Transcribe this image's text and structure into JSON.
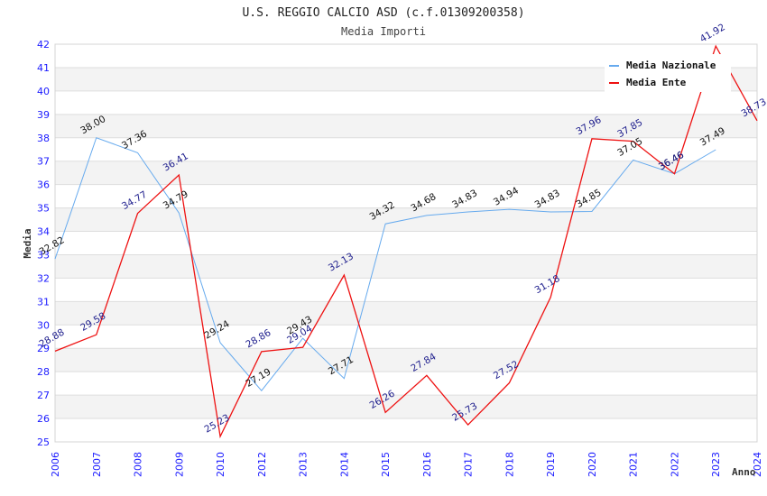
{
  "chart_data": {
    "type": "line",
    "title": "U.S. REGGIO CALCIO ASD (c.f.01309200358)",
    "subtitle": "Media Importi",
    "xlabel": "Anno",
    "ylabel": "Media",
    "ylim": [
      25,
      42
    ],
    "yticks": [
      "25",
      "26",
      "27",
      "28",
      "29",
      "30",
      "31",
      "32",
      "33",
      "34",
      "35",
      "36",
      "37",
      "38",
      "39",
      "40",
      "41",
      "42"
    ],
    "grid": true,
    "legend_position": "top-right",
    "categories": [
      "2006",
      "2007",
      "2008",
      "2009",
      "2010",
      "2012",
      "2013",
      "2014",
      "2015",
      "2016",
      "2017",
      "2018",
      "2019",
      "2020",
      "2021",
      "2022",
      "2023",
      "2024"
    ],
    "series": [
      {
        "name": "Media Nazionale",
        "color": "#66aaee",
        "values": [
          32.82,
          38.0,
          37.36,
          34.79,
          29.24,
          27.19,
          29.43,
          27.71,
          34.32,
          34.68,
          34.83,
          34.94,
          34.83,
          34.85,
          37.05,
          36.46,
          37.49,
          null
        ],
        "labels": [
          "32.82",
          "38.00",
          "37.36",
          "34.79",
          "29.24",
          "27.19",
          "29.43",
          "27.71",
          "34.32",
          "34.68",
          "34.83",
          "34.94",
          "34.83",
          "34.85",
          "37.05",
          "36.46",
          "37.49",
          null
        ]
      },
      {
        "name": "Media Ente",
        "color": "#ee1111",
        "values": [
          28.88,
          29.58,
          34.77,
          36.41,
          25.23,
          28.86,
          29.04,
          32.13,
          26.26,
          27.84,
          25.73,
          27.52,
          31.18,
          37.96,
          37.85,
          36.46,
          41.92,
          38.73
        ],
        "labels": [
          "28.88",
          "29.58",
          "34.77",
          "36.41",
          "25.23",
          "28.86",
          "29.04",
          "32.13",
          "26.26",
          "27.84",
          "25.73",
          "27.52",
          "31.18",
          "37.96",
          "37.85",
          "36.46",
          "41.92",
          "38.73"
        ]
      }
    ]
  }
}
